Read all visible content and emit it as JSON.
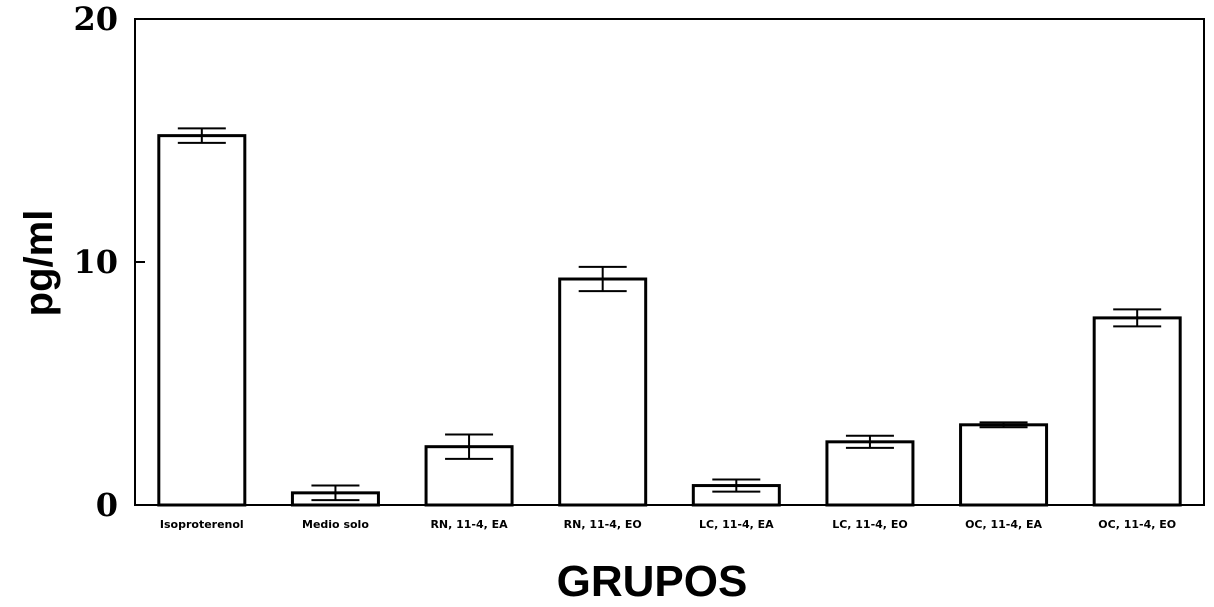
{
  "chart_data": {
    "type": "bar",
    "title": "",
    "xlabel": "GRUPOS",
    "ylabel": "pg/ml",
    "ylim": [
      0,
      20
    ],
    "yticks": [
      "0",
      "10",
      "20"
    ],
    "grid": false,
    "categories": [
      "Isoproterenol",
      "Medio solo",
      "RN, 11-4, EA",
      "RN, 11-4, EO",
      "LC, 11-4, EA",
      "LC, 11-4, EO",
      "OC, 11-4, EA",
      "OC, 11-4, EO"
    ],
    "values": [
      15.2,
      0.5,
      2.4,
      9.3,
      0.8,
      2.6,
      3.3,
      7.7
    ],
    "errors": [
      0.3,
      0.3,
      0.5,
      0.5,
      0.25,
      0.25,
      0.1,
      0.35
    ],
    "colors": {
      "bar_fill": "#ffffff",
      "bar_stroke": "#000000",
      "axis": "#000000"
    }
  }
}
